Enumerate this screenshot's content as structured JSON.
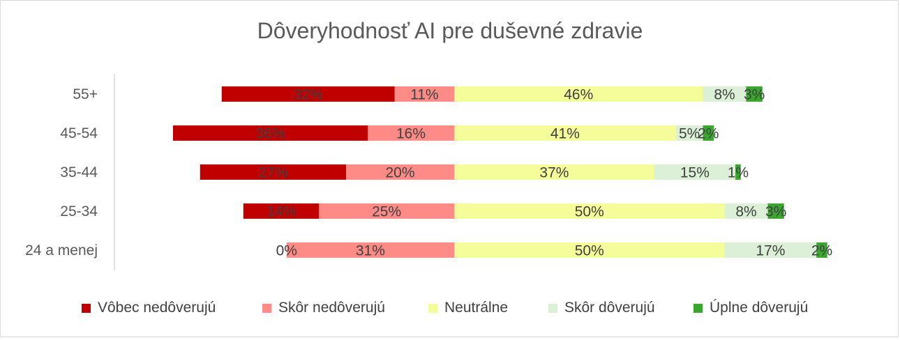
{
  "chart_data": {
    "type": "bar",
    "orientation": "horizontal",
    "stacked": "diverging",
    "title": "Dôveryhodnosť AI pre duševné zdravie",
    "categories": [
      "55+",
      "45-54",
      "35-44",
      "25-34",
      "24 a menej"
    ],
    "series": [
      {
        "name": "Vôbec nedôverujú",
        "color": "#c00000",
        "values": [
          32,
          36,
          27,
          14,
          0
        ],
        "labels": [
          "32%",
          "36%",
          "27%",
          "14%",
          "0%"
        ]
      },
      {
        "name": "Skôr nedôverujú",
        "color": "#ff8b86",
        "values": [
          11,
          16,
          20,
          25,
          31
        ],
        "labels": [
          "11%",
          "16%",
          "20%",
          "25%",
          "31%"
        ]
      },
      {
        "name": "Neutrálne",
        "color": "#f4fd9a",
        "values": [
          46,
          41,
          37,
          50,
          50
        ],
        "labels": [
          "46%",
          "41%",
          "37%",
          "50%",
          "50%"
        ]
      },
      {
        "name": "Skôr dôverujú",
        "color": "#dcf0d8",
        "values": [
          8,
          5,
          15,
          8,
          17
        ],
        "labels": [
          "8%",
          "5%",
          "15%",
          "8%",
          "17%"
        ]
      },
      {
        "name": "Úplne dôverujú",
        "color": "#3aa52f",
        "values": [
          3,
          2,
          1,
          3,
          2
        ],
        "labels": [
          "3%",
          "2%",
          "1%",
          "3%",
          "2%"
        ]
      }
    ],
    "grid": false,
    "legend_position": "bottom"
  }
}
